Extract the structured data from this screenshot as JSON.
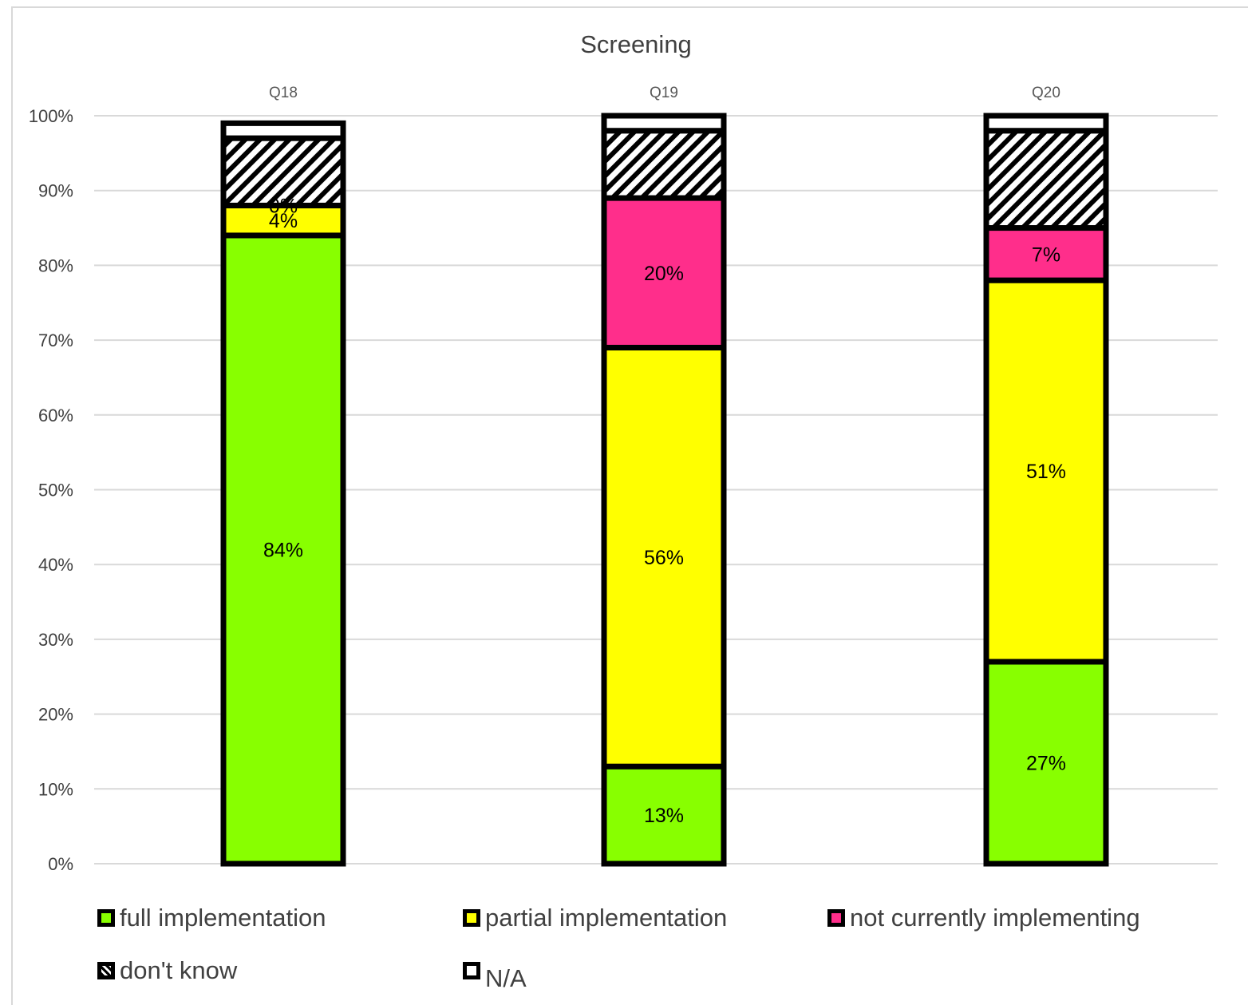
{
  "chart_data": {
    "type": "bar",
    "stacked": true,
    "title": "Screening",
    "categories": [
      "Q18",
      "Q19",
      "Q20"
    ],
    "ylim": [
      0,
      100
    ],
    "y_ticks": [
      "0%",
      "10%",
      "20%",
      "30%",
      "40%",
      "50%",
      "60%",
      "70%",
      "80%",
      "90%",
      "100%"
    ],
    "grid": true,
    "legend_position": "bottom",
    "series": [
      {
        "name": "full implementation",
        "color": "#88ff00",
        "pattern": "solid",
        "values": [
          84,
          13,
          27
        ],
        "labels": [
          "84%",
          "13%",
          "27%"
        ]
      },
      {
        "name": "partial implementation",
        "color": "#ffff00",
        "pattern": "solid",
        "values": [
          4,
          56,
          51
        ],
        "labels": [
          "4%",
          "56%",
          "51%"
        ]
      },
      {
        "name": "not currently implementing",
        "color": "#ff2e8b",
        "pattern": "solid",
        "values": [
          0,
          20,
          7
        ],
        "labels": [
          "0%",
          "20%",
          "7%"
        ]
      },
      {
        "name": "don't know",
        "color": "#000000",
        "pattern": "diagonal-stripes",
        "values": [
          9,
          9,
          13
        ],
        "labels": [
          "",
          "",
          ""
        ]
      },
      {
        "name": "N/A",
        "color": "#ffffff",
        "pattern": "solid",
        "values": [
          2,
          2,
          2
        ],
        "labels": [
          "",
          "",
          ""
        ]
      }
    ]
  }
}
